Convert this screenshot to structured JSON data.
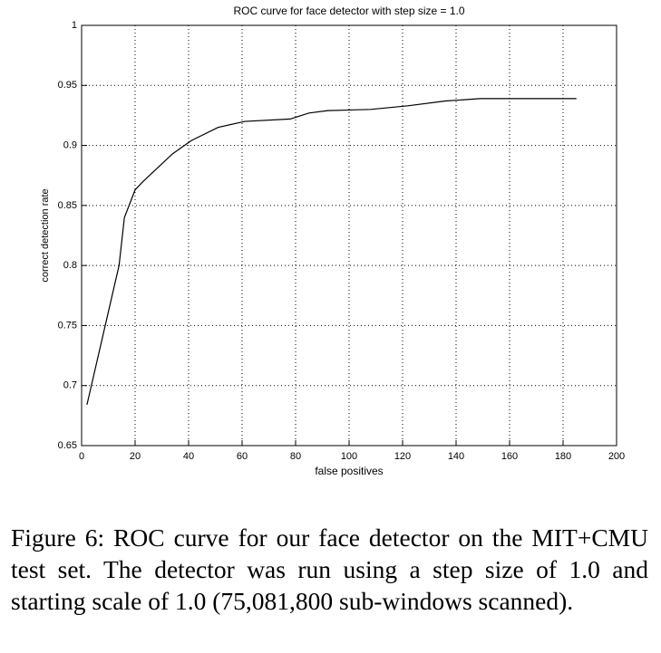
{
  "chart_data": {
    "type": "line",
    "title": "ROC curve for face detector with step size = 1.0",
    "xlabel": "false positives",
    "ylabel": "correct detection rate",
    "x": [
      2,
      14,
      16,
      20,
      23,
      34,
      41,
      51,
      61,
      78,
      85,
      92,
      108,
      122,
      136,
      149,
      185
    ],
    "series": [
      {
        "color": "#000000",
        "values": [
          0.684,
          0.8,
          0.84,
          0.863,
          0.87,
          0.893,
          0.904,
          0.915,
          0.92,
          0.922,
          0.927,
          0.929,
          0.93,
          0.933,
          0.937,
          0.939,
          0.939
        ]
      }
    ],
    "xlim": [
      0,
      200
    ],
    "xticks": [
      0,
      20,
      40,
      60,
      80,
      100,
      120,
      140,
      160,
      180,
      200
    ],
    "ylim": [
      0.65,
      1
    ],
    "yticks": [
      0.65,
      0.7,
      0.75,
      0.8,
      0.85,
      0.9,
      0.95,
      1
    ],
    "grid": true
  },
  "caption": "Figure 6:  ROC curve for our face detector on the MIT+CMU test set. The detector was run using a step size of 1.0 and starting scale of 1.0 (75,081,800 sub-windows scanned)."
}
